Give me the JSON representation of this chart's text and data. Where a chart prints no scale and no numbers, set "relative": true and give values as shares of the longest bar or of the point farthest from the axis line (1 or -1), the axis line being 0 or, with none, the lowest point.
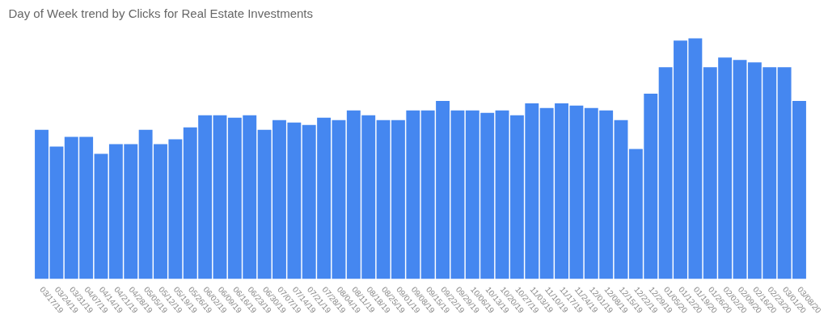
{
  "chart_data": {
    "type": "bar",
    "title": "Day of Week trend by Clicks for Real Estate Investments",
    "relative": true,
    "color": "#4587f0",
    "categories": [
      "03/17/19",
      "03/24/19",
      "03/31/19",
      "04/07/19",
      "04/14/19",
      "04/21/19",
      "04/28/19",
      "05/05/19",
      "05/12/19",
      "05/19/19",
      "05/26/19",
      "06/02/19",
      "06/09/19",
      "06/16/19",
      "06/23/19",
      "06/30/19",
      "07/07/19",
      "07/14/19",
      "07/21/19",
      "07/28/19",
      "08/04/19",
      "08/11/19",
      "08/18/19",
      "08/25/19",
      "09/01/19",
      "09/08/19",
      "09/15/19",
      "09/22/19",
      "09/29/19",
      "10/06/19",
      "10/13/19",
      "10/20/19",
      "10/27/19",
      "11/03/19",
      "11/10/19",
      "11/17/19",
      "11/24/19",
      "12/01/19",
      "12/08/19",
      "12/15/19",
      "12/22/19",
      "12/29/19",
      "01/05/20",
      "01/12/20",
      "01/19/20",
      "01/26/20",
      "02/02/20",
      "02/09/20",
      "02/16/20",
      "02/23/20",
      "03/01/20",
      "03/08/20"
    ],
    "values": [
      0.62,
      0.55,
      0.59,
      0.59,
      0.52,
      0.56,
      0.56,
      0.62,
      0.56,
      0.58,
      0.63,
      0.68,
      0.68,
      0.67,
      0.68,
      0.62,
      0.66,
      0.65,
      0.64,
      0.67,
      0.66,
      0.7,
      0.68,
      0.66,
      0.66,
      0.7,
      0.7,
      0.74,
      0.7,
      0.7,
      0.69,
      0.7,
      0.68,
      0.73,
      0.71,
      0.73,
      0.72,
      0.71,
      0.7,
      0.66,
      0.54,
      0.77,
      0.88,
      0.99,
      1,
      0.88,
      0.92,
      0.91,
      0.9,
      0.88,
      0.88,
      0.74
    ]
  }
}
